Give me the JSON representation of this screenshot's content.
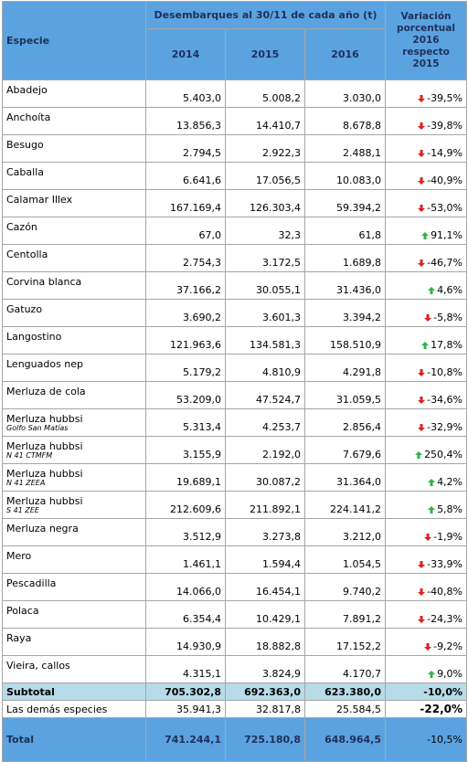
{
  "header": {
    "species": "Especie",
    "group": "Desembarques al 30/11 de cada año (t)",
    "years": [
      "2014",
      "2015",
      "2016"
    ],
    "variation": "Variación porcentual 2016 respecto 2015"
  },
  "rows": [
    {
      "species": "Abadejo",
      "values": [
        "5.403,0",
        "5.008,2",
        "3.030,0",
        "-39,5%"
      ]
    },
    {
      "species": "Anchoíta",
      "values": [
        "13.856,3",
        "14.410,7",
        "8.678,8",
        "-39,8%"
      ]
    },
    {
      "species": "Besugo",
      "values": [
        "2.794,5",
        "2.922,3",
        "2.488,1",
        "-14,9%"
      ]
    },
    {
      "species": "Caballa",
      "values": [
        "6.641,6",
        "17.056,5",
        "10.083,0",
        "-40,9%"
      ]
    },
    {
      "species": "Calamar Illex",
      "values": [
        "167.169,4",
        "126.303,4",
        "59.394,2",
        "-53,0%"
      ]
    },
    {
      "species": "Cazón",
      "values": [
        "67,0",
        "32,3",
        "61,8",
        "91,1%"
      ]
    },
    {
      "species": "Centolla",
      "values": [
        "2.754,3",
        "3.172,5",
        "1.689,8",
        "-46,7%"
      ]
    },
    {
      "species": "Corvina blanca",
      "values": [
        "37.166,2",
        "30.055,1",
        "31.436,0",
        "4,6%"
      ]
    },
    {
      "species": "Gatuzo",
      "values": [
        "3.690,2",
        "3.601,3",
        "3.394,2",
        "-5,8%"
      ]
    },
    {
      "species": "Langostino",
      "values": [
        "121.963,6",
        "134.581,3",
        "158.510,9",
        "17,8%"
      ]
    },
    {
      "species": "Lenguados nep",
      "values": [
        "5.179,2",
        "4.810,9",
        "4.291,8",
        "-10,8%"
      ]
    },
    {
      "species": "Merluza de cola",
      "values": [
        "53.209,0",
        "47.524,7",
        "31.059,5",
        "-34,6%"
      ]
    },
    {
      "species": "Merluza hubbsi",
      "note": "Golfo San Matías",
      "values": [
        "5.313,4",
        "4.253,7",
        "2.856,4",
        "-32,9%"
      ]
    },
    {
      "species": "Merluza hubbsi",
      "note": "N 41 CTMFM",
      "values": [
        "3.155,9",
        "2.192,0",
        "7.679,6",
        "250,4%"
      ]
    },
    {
      "species": "Merluza hubbsi",
      "note": "N 41 ZEEA",
      "values": [
        "19.689,1",
        "30.087,2",
        "31.364,0",
        "4,2%"
      ]
    },
    {
      "species": "Merluza hubbsi",
      "note": "S 41 ZEE",
      "values": [
        "212.609,6",
        "211.892,1",
        "224.141,2",
        "5,8%"
      ]
    },
    {
      "species": "Merluza negra",
      "values": [
        "3.512,9",
        "3.273,8",
        "3.212,0",
        "-1,9%"
      ]
    },
    {
      "species": "Mero",
      "values": [
        "1.461,1",
        "1.594,4",
        "1.054,5",
        "-33,9%"
      ]
    },
    {
      "species": "Pescadilla",
      "values": [
        "14.066,0",
        "16.454,1",
        "9.740,2",
        "-40,8%"
      ]
    },
    {
      "species": "Polaca",
      "values": [
        "6.354,4",
        "10.429,1",
        "7.891,2",
        "-24,3%"
      ]
    },
    {
      "species": "Raya",
      "values": [
        "14.930,9",
        "18.882,8",
        "17.152,2",
        "-9,2%"
      ]
    },
    {
      "species": "Vieira, callos",
      "values": [
        "4.315,1",
        "3.824,9",
        "4.170,7",
        "9,0%"
      ]
    }
  ],
  "subtotal": {
    "species": "Subtotal",
    "values": [
      "705.302,8",
      "692.363,0",
      "623.380,0",
      "-10,0%"
    ]
  },
  "others": {
    "species": "Las demás especies",
    "values": [
      "35.941,3",
      "32.817,8",
      "25.584,5",
      "-22,0%"
    ]
  },
  "total": {
    "species": "Total",
    "values": [
      "741.244,1",
      "725.180,8",
      "648.964,5",
      "-10,5%"
    ]
  }
}
